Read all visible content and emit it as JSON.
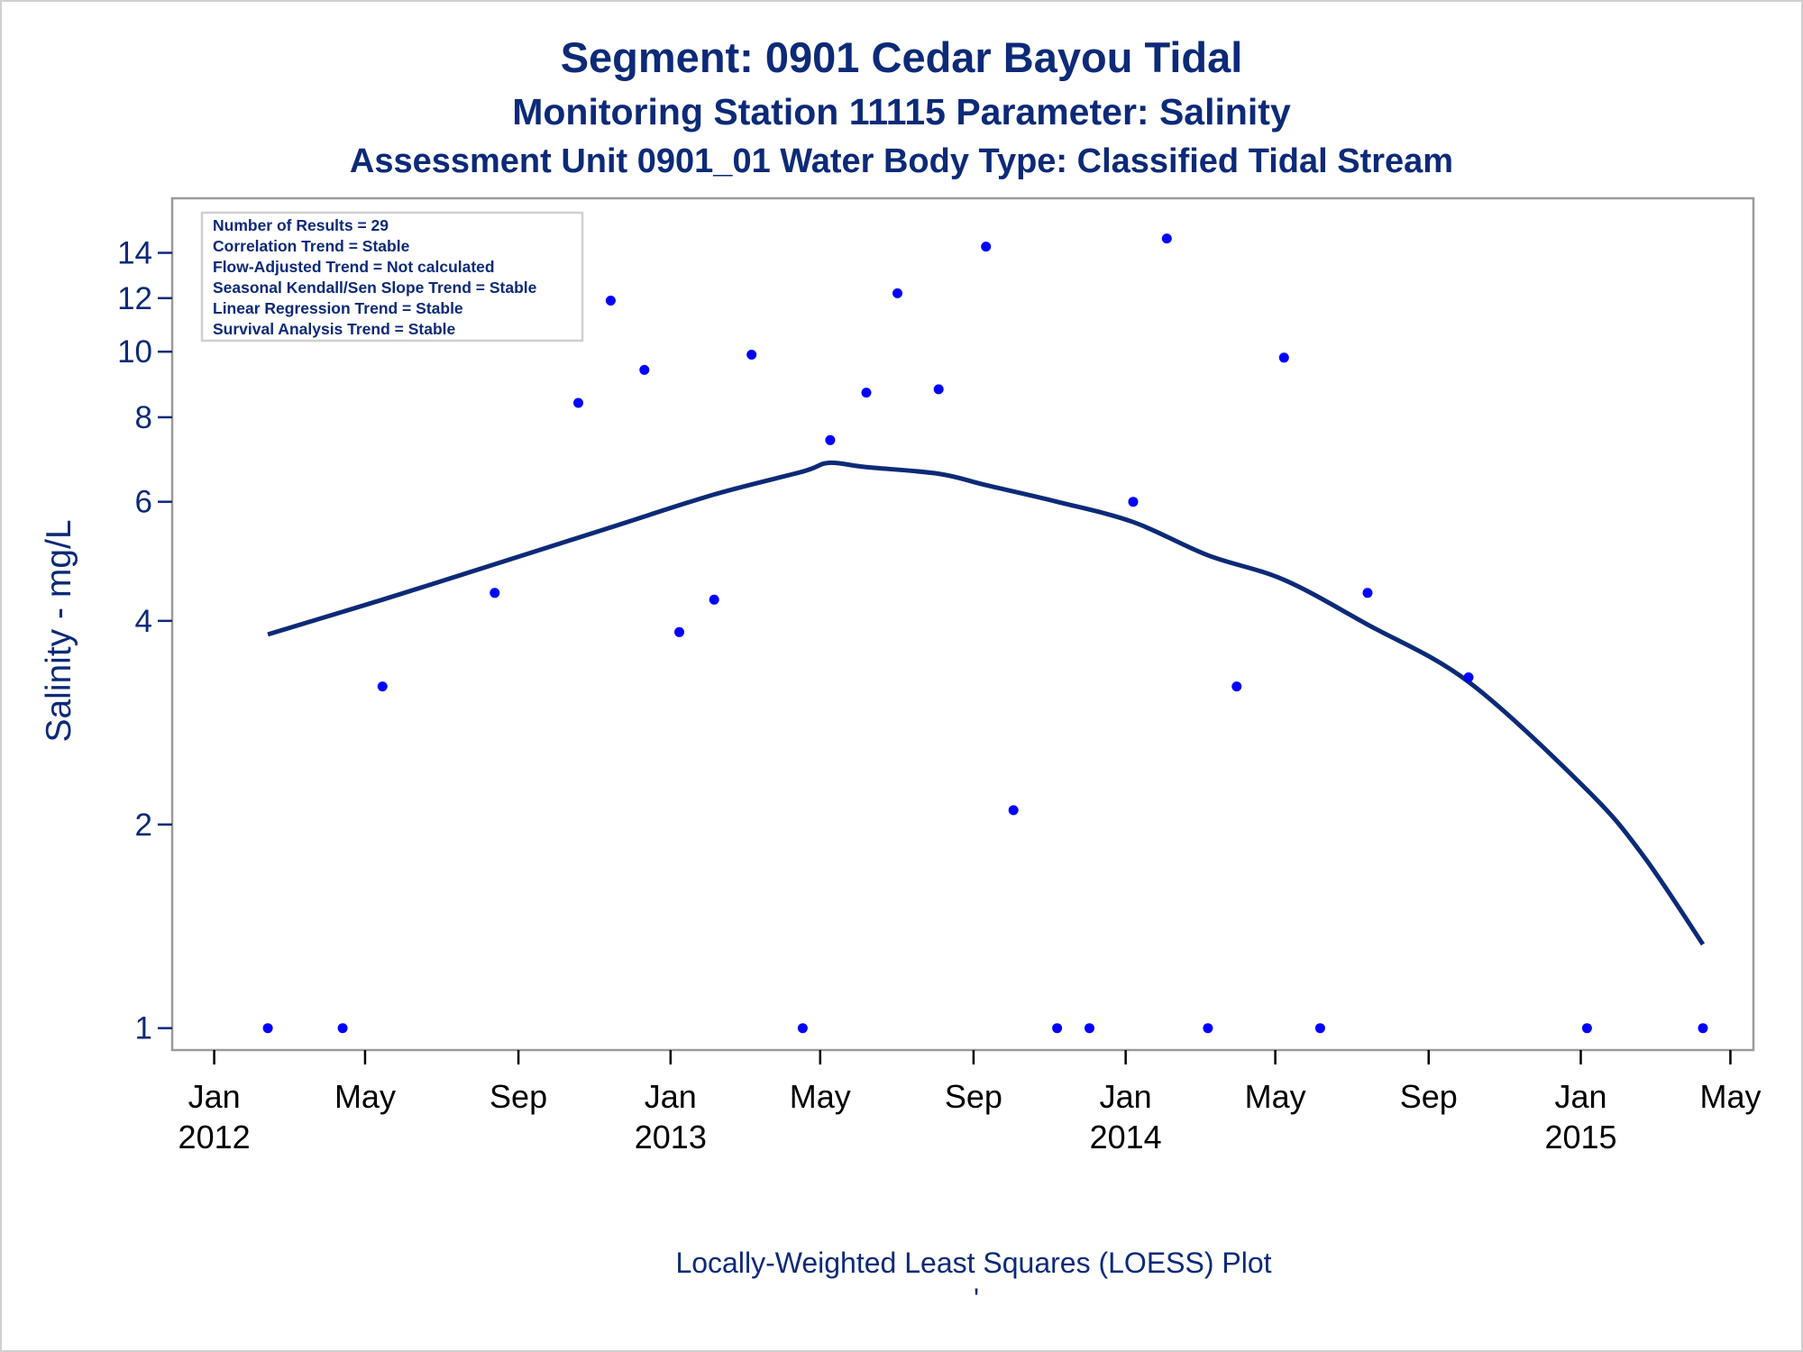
{
  "chart_data": {
    "type": "scatter",
    "title": "Segment: 0901  Cedar Bayou Tidal",
    "subtitle": "Monitoring Station 11115 Parameter: Salinity",
    "subtitle2": "Assessment Unit 0901_01   Water Body Type: Classified Tidal Stream",
    "xlabel": "",
    "ylabel": "Salinity - mg/L",
    "footnote": "Locally-Weighted Least Squares (LOESS) Plot",
    "footnote_mark": "'",
    "y_scale": "log",
    "ylim": [
      0.96,
      16
    ],
    "xlim": [
      "2011-12-20",
      "2015-05-05"
    ],
    "y_ticks": [
      {
        "value": 1,
        "label": "1"
      },
      {
        "value": 2,
        "label": "2"
      },
      {
        "value": 4,
        "label": "4"
      },
      {
        "value": 6,
        "label": "6"
      },
      {
        "value": 8,
        "label": "8"
      },
      {
        "value": 10,
        "label": "10"
      },
      {
        "value": 12,
        "label": "12"
      },
      {
        "value": 14,
        "label": "14"
      }
    ],
    "x_ticks": [
      {
        "date": "2012-01-01",
        "label": "Jan",
        "year": "2012"
      },
      {
        "date": "2012-05-01",
        "label": "May",
        "year": ""
      },
      {
        "date": "2012-09-01",
        "label": "Sep",
        "year": ""
      },
      {
        "date": "2013-01-01",
        "label": "Jan",
        "year": "2013"
      },
      {
        "date": "2013-05-01",
        "label": "May",
        "year": ""
      },
      {
        "date": "2013-09-01",
        "label": "Sep",
        "year": ""
      },
      {
        "date": "2014-01-01",
        "label": "Jan",
        "year": "2014"
      },
      {
        "date": "2014-05-01",
        "label": "May",
        "year": ""
      },
      {
        "date": "2014-09-01",
        "label": "Sep",
        "year": ""
      },
      {
        "date": "2015-01-01",
        "label": "Jan",
        "year": "2015"
      },
      {
        "date": "2015-05-01",
        "label": "May",
        "year": ""
      }
    ],
    "points": [
      {
        "x": "2012-02-13",
        "y": 1.0
      },
      {
        "x": "2012-04-13",
        "y": 1.0
      },
      {
        "x": "2012-05-15",
        "y": 3.2
      },
      {
        "x": "2012-08-13",
        "y": 4.4
      },
      {
        "x": "2012-10-19",
        "y": 8.4
      },
      {
        "x": "2012-11-14",
        "y": 11.9
      },
      {
        "x": "2012-12-11",
        "y": 9.4
      },
      {
        "x": "2013-01-08",
        "y": 3.85
      },
      {
        "x": "2013-02-05",
        "y": 4.3
      },
      {
        "x": "2013-03-07",
        "y": 9.9
      },
      {
        "x": "2013-04-17",
        "y": 1.0
      },
      {
        "x": "2013-05-09",
        "y": 7.4
      },
      {
        "x": "2013-06-07",
        "y": 8.7
      },
      {
        "x": "2013-07-02",
        "y": 12.2
      },
      {
        "x": "2013-08-04",
        "y": 8.8
      },
      {
        "x": "2013-09-11",
        "y": 14.3
      },
      {
        "x": "2013-10-03",
        "y": 2.1
      },
      {
        "x": "2013-11-07",
        "y": 1.0
      },
      {
        "x": "2013-12-03",
        "y": 1.0
      },
      {
        "x": "2014-01-07",
        "y": 6.0
      },
      {
        "x": "2014-02-03",
        "y": 14.7
      },
      {
        "x": "2014-03-08",
        "y": 1.0
      },
      {
        "x": "2014-03-31",
        "y": 3.2
      },
      {
        "x": "2014-05-08",
        "y": 9.8
      },
      {
        "x": "2014-06-06",
        "y": 1.0
      },
      {
        "x": "2014-07-14",
        "y": 4.4
      },
      {
        "x": "2014-10-03",
        "y": 3.3
      },
      {
        "x": "2015-01-06",
        "y": 1.0
      },
      {
        "x": "2015-04-09",
        "y": 1.0
      }
    ],
    "loess": [
      {
        "x": "2012-02-13",
        "y": 3.82
      },
      {
        "x": "2012-05-15",
        "y": 4.3
      },
      {
        "x": "2012-08-13",
        "y": 4.85
      },
      {
        "x": "2012-11-14",
        "y": 5.5
      },
      {
        "x": "2013-02-05",
        "y": 6.15
      },
      {
        "x": "2013-04-17",
        "y": 6.65
      },
      {
        "x": "2013-05-08",
        "y": 6.85
      },
      {
        "x": "2013-06-07",
        "y": 6.75
      },
      {
        "x": "2013-08-04",
        "y": 6.6
      },
      {
        "x": "2013-09-11",
        "y": 6.35
      },
      {
        "x": "2013-11-07",
        "y": 6.0
      },
      {
        "x": "2014-01-07",
        "y": 5.6
      },
      {
        "x": "2014-03-08",
        "y": 5.0
      },
      {
        "x": "2014-05-08",
        "y": 4.6
      },
      {
        "x": "2014-07-14",
        "y": 3.95
      },
      {
        "x": "2014-10-03",
        "y": 3.25
      },
      {
        "x": "2015-01-06",
        "y": 2.25
      },
      {
        "x": "2015-02-20",
        "y": 1.8
      },
      {
        "x": "2015-04-09",
        "y": 1.33
      }
    ],
    "stats": [
      "Number of Results = 29",
      "Correlation Trend = Stable",
      "Flow-Adjusted Trend = Not calculated",
      "Seasonal Kendall/Sen Slope Trend = Stable",
      "Linear Regression Trend = Stable",
      "Survival Analysis Trend = Stable"
    ],
    "colors": {
      "title": "#0c2a78",
      "marker": "#0000ff",
      "line": "#0c2a78",
      "frame": "#9a9a9a"
    },
    "grid": false,
    "legend": "none"
  }
}
